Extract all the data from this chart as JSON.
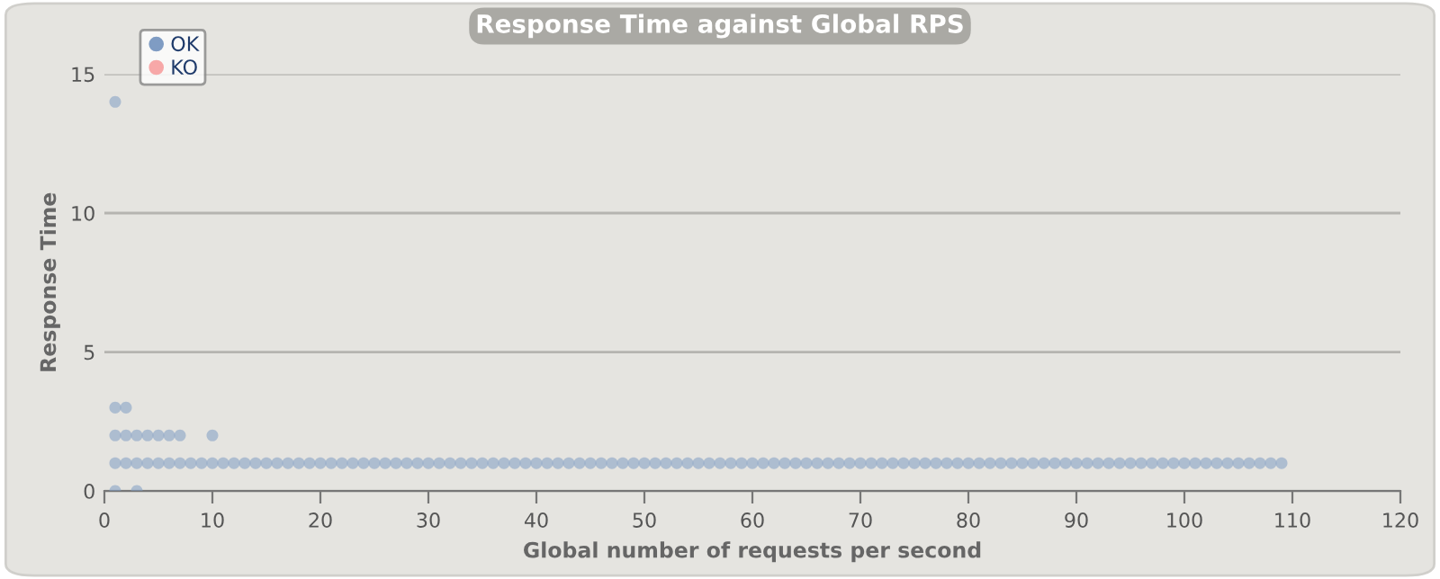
{
  "chart_data": {
    "type": "scatter",
    "title": "Response Time against Global RPS",
    "xlabel": "Global number of requests per second",
    "ylabel": "Response Time",
    "xlim": [
      0,
      120
    ],
    "xticks": [
      0,
      10,
      20,
      30,
      40,
      50,
      60,
      70,
      80,
      90,
      100,
      110,
      120
    ],
    "ylim": [
      0,
      15
    ],
    "yticks": [
      0,
      5,
      10,
      15
    ],
    "grid": "y",
    "legend": "top left",
    "marker": "circle",
    "series": [
      {
        "name": "OK",
        "color": "#7f9cc3",
        "x": [
          1,
          2,
          3,
          4,
          5,
          6,
          7,
          8,
          9,
          10,
          11,
          12,
          13,
          14,
          15,
          16,
          17,
          18,
          19,
          20,
          21,
          22,
          23,
          24,
          25,
          26,
          27,
          28,
          29,
          30,
          31,
          32,
          33,
          34,
          35,
          36,
          37,
          38,
          39,
          40,
          41,
          42,
          43,
          44,
          45,
          46,
          47,
          48,
          49,
          50,
          51,
          52,
          53,
          54,
          55,
          56,
          57,
          58,
          59,
          60,
          61,
          62,
          63,
          64,
          65,
          66,
          67,
          68,
          69,
          70,
          71,
          72,
          73,
          74,
          75,
          76,
          77,
          78,
          79,
          80,
          81,
          82,
          83,
          84,
          85,
          86,
          87,
          88,
          89,
          90,
          91,
          92,
          93,
          94,
          95,
          96,
          97,
          98,
          99,
          100,
          101,
          102,
          103,
          104,
          105,
          106,
          107,
          108,
          109,
          1,
          3,
          1,
          2,
          3,
          4,
          5,
          6,
          7,
          10,
          1,
          2,
          1
        ],
        "values": [
          1,
          1,
          1,
          1,
          1,
          1,
          1,
          1,
          1,
          1,
          1,
          1,
          1,
          1,
          1,
          1,
          1,
          1,
          1,
          1,
          1,
          1,
          1,
          1,
          1,
          1,
          1,
          1,
          1,
          1,
          1,
          1,
          1,
          1,
          1,
          1,
          1,
          1,
          1,
          1,
          1,
          1,
          1,
          1,
          1,
          1,
          1,
          1,
          1,
          1,
          1,
          1,
          1,
          1,
          1,
          1,
          1,
          1,
          1,
          1,
          1,
          1,
          1,
          1,
          1,
          1,
          1,
          1,
          1,
          1,
          1,
          1,
          1,
          1,
          1,
          1,
          1,
          1,
          1,
          1,
          1,
          1,
          1,
          1,
          1,
          1,
          1,
          1,
          1,
          1,
          1,
          1,
          1,
          1,
          1,
          1,
          1,
          1,
          1,
          1,
          1,
          1,
          1,
          1,
          1,
          1,
          1,
          1,
          1,
          0,
          0,
          2,
          2,
          2,
          2,
          2,
          2,
          2,
          2,
          3,
          3,
          14
        ]
      },
      {
        "name": "KO",
        "color": "#f7a8a8"
      }
    ]
  }
}
